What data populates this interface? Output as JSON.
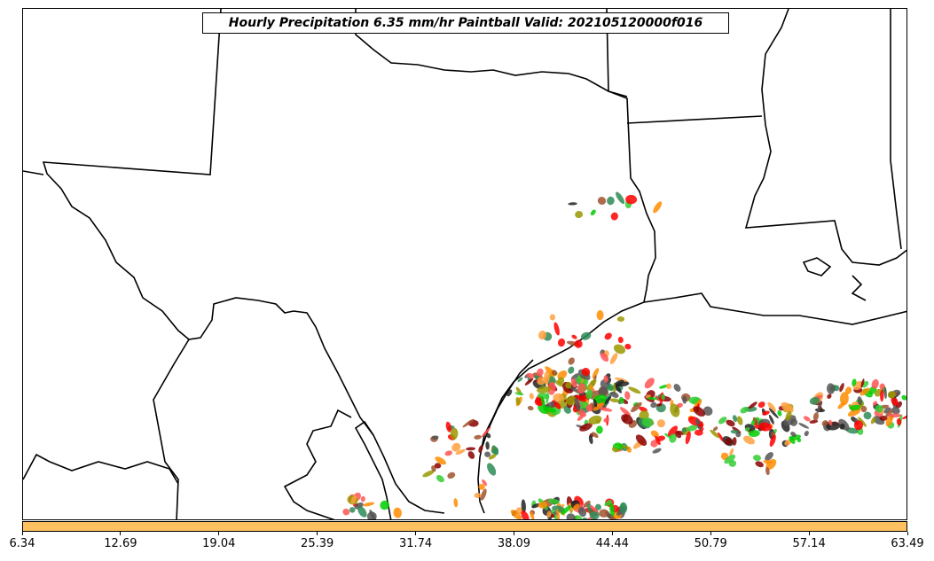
{
  "title": "Hourly Precipitation 6.35 mm/hr Paintball Valid: 202105120000f016",
  "colors": {
    "colorbar_fill": "#ffc060",
    "boundary": "#000000",
    "paint_palette": [
      "#ff0000",
      "#ff8c00",
      "#00cc00",
      "#8b0000",
      "#222222",
      "#999900",
      "#2e8b57",
      "#ff5555",
      "#ffa040",
      "#555555",
      "#32cd32",
      "#a0522d"
    ]
  },
  "colorbar": {
    "ticks": [
      "6.34",
      "12.69",
      "19.04",
      "25.39",
      "31.74",
      "38.09",
      "44.44",
      "50.79",
      "57.14",
      "63.49"
    ]
  }
}
